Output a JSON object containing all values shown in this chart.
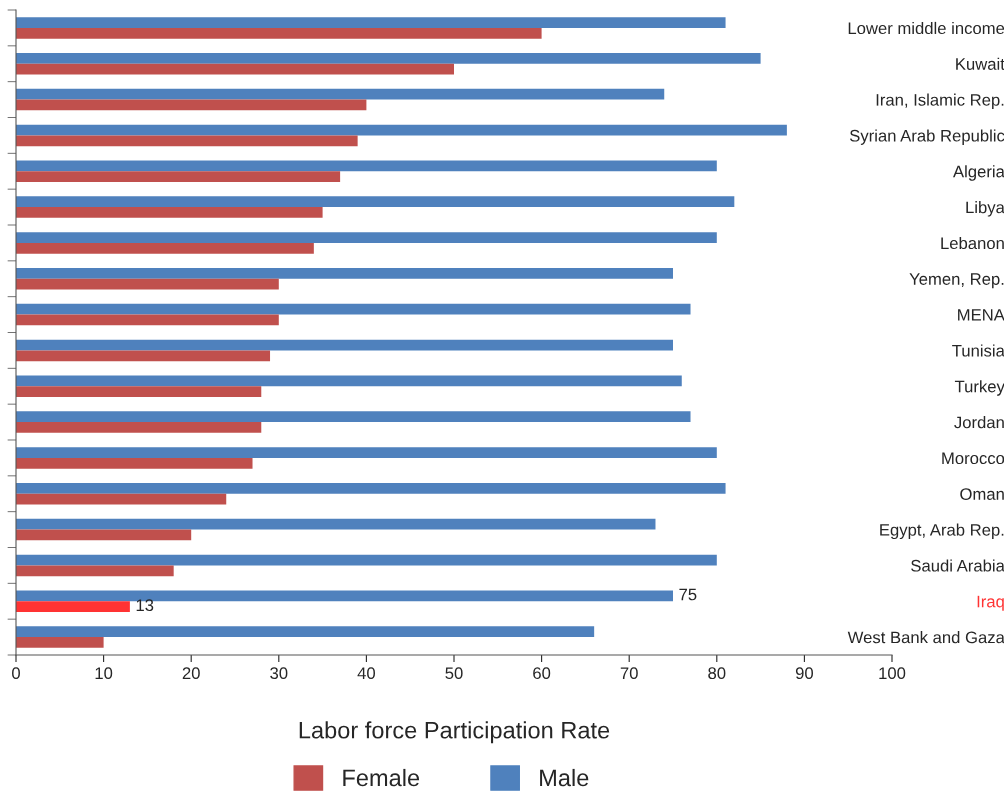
{
  "chart_data": {
    "type": "bar",
    "orientation": "horizontal",
    "xlabel": "Labor force Participation Rate",
    "categories": [
      "Lower middle income",
      "Kuwait",
      "Iran, Islamic Rep.",
      "Syrian Arab Republic",
      "Algeria",
      "Libya",
      "Lebanon",
      "Yemen, Rep.",
      "MENA",
      "Tunisia",
      "Turkey",
      "Jordan",
      "Morocco",
      "Oman",
      "Egypt, Arab Rep.",
      "Saudi Arabia",
      "Iraq",
      "West Bank and Gaza"
    ],
    "series": [
      {
        "name": "Male",
        "color": "#4f81bd",
        "values": [
          81,
          85,
          74,
          88,
          80,
          82,
          80,
          75,
          77,
          75,
          76,
          77,
          80,
          81,
          73,
          80,
          75,
          66
        ],
        "value_labels": [
          null,
          null,
          null,
          null,
          null,
          null,
          null,
          null,
          null,
          null,
          null,
          null,
          null,
          null,
          null,
          null,
          "75",
          null
        ]
      },
      {
        "name": "Female",
        "color": "#c0504d",
        "colors": [
          "#c0504d",
          "#c0504d",
          "#c0504d",
          "#c0504d",
          "#c0504d",
          "#c0504d",
          "#c0504d",
          "#c0504d",
          "#c0504d",
          "#c0504d",
          "#c0504d",
          "#c0504d",
          "#c0504d",
          "#c0504d",
          "#c0504d",
          "#c0504d",
          "#ff3333",
          "#c0504d"
        ],
        "values": [
          60,
          50,
          40,
          39,
          37,
          35,
          34,
          30,
          30,
          29,
          28,
          28,
          27,
          24,
          20,
          18,
          13,
          10
        ],
        "value_labels": [
          null,
          null,
          null,
          null,
          null,
          null,
          null,
          null,
          null,
          null,
          null,
          null,
          null,
          null,
          null,
          null,
          "13",
          null
        ]
      }
    ],
    "xlim": [
      0,
      100
    ],
    "xticks": [
      0,
      10,
      20,
      30,
      40,
      50,
      60,
      70,
      80,
      90,
      100
    ],
    "grid": false,
    "legend": "bottom",
    "tick_labels": "x"
  }
}
